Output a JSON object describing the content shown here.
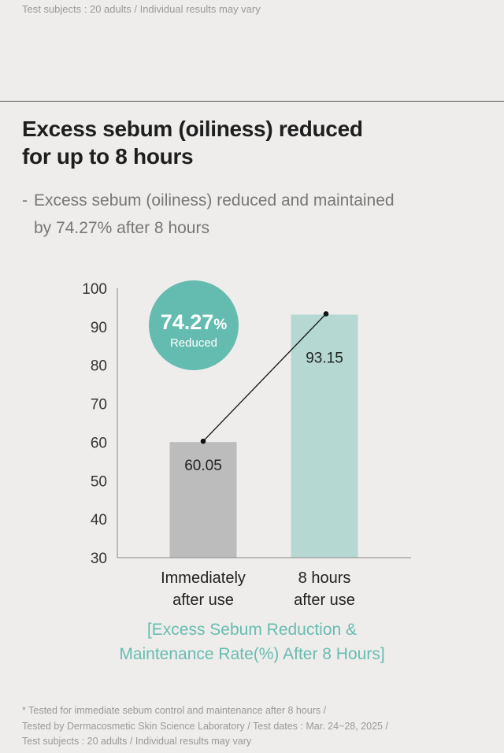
{
  "top_note": "Test subjects : 20 adults / Individual results may vary",
  "headline": {
    "line1": "Excess sebum (oiliness) reduced",
    "line2": "for up to 8 hours"
  },
  "subline": {
    "dash": "-",
    "line1": "Excess sebum (oiliness) reduced and maintained",
    "line2": "by 74.27% after 8 hours"
  },
  "badge": {
    "value": "74.27",
    "unit": "%",
    "label": "Reduced",
    "color": "#64bbb0"
  },
  "chart_data": {
    "type": "bar",
    "categories": [
      [
        "Immediately",
        "after use"
      ],
      [
        "8 hours",
        "after use"
      ]
    ],
    "values": [
      60.05,
      93.15
    ],
    "value_labels": [
      "60.05",
      "93.15"
    ],
    "bar_colors": [
      "#bcbcbc",
      "#b5d8d2"
    ],
    "ylim": [
      30,
      100
    ],
    "yticks": [
      30,
      40,
      50,
      60,
      70,
      80,
      90,
      100
    ],
    "grid": false,
    "trend_line": true
  },
  "chart_caption": {
    "line1": "[Excess Sebum Reduction &",
    "line2": "Maintenance Rate(%) After 8 Hours]"
  },
  "footnote": {
    "line1": "* Tested for immediate sebum control and maintenance after 8 hours /",
    "line2": "Tested by Dermacosmetic Skin Science Laboratory / Test dates : Mar. 24~28, 2025 /",
    "line3": "Test subjects : 20 adults / Individual results may vary"
  }
}
